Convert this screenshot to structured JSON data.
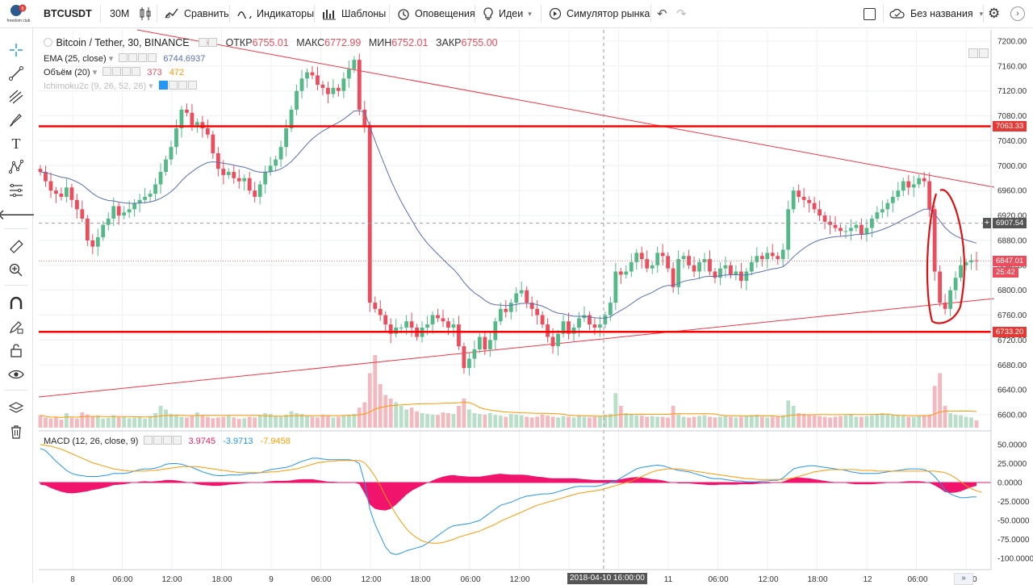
{
  "topbar": {
    "symbol": "BTCUSDT",
    "interval": "30M",
    "compare": "Сравнить",
    "indicators": "Индикаторы",
    "templates": "Шаблоны",
    "alerts": "Оповещения",
    "ideas": "Идеи",
    "simulator": "Симулятор рынка",
    "layout_name": "Без названия"
  },
  "logo": {
    "text": "freedom club",
    "badge": "6"
  },
  "legend": {
    "title": "Bitcoin / Tether, 30, BINANCE",
    "o_label": "ОТКР",
    "o": "6755.01",
    "h_label": "МАКС",
    "h": "6772.99",
    "l_label": "МИН",
    "l": "6752.01",
    "c_label": "ЗАКР",
    "c": "6755.00",
    "ema_label": "EMA (25, close)",
    "ema_value": "6744.6937",
    "vol_label": "Объём (20)",
    "vol_value1": "373",
    "vol_value2": "472",
    "ichimoku_label": "Ichimoku2c (9, 26, 52, 26)",
    "macd_label": "MACD (12, 26, close, 9)",
    "macd_v1": "3.9745",
    "macd_v2": "-3.9713",
    "macd_v3": "-7.9458"
  },
  "price_axis": [
    "7200.00",
    "7160.00",
    "7120.00",
    "7080.00",
    "7040.00",
    "7000.00",
    "6960.00",
    "6920.00",
    "6880.00",
    "6840.00",
    "6800.00",
    "6760.00",
    "6720.00",
    "6680.00",
    "6640.00",
    "6600.00"
  ],
  "price_tags": {
    "level_high": "7063.33",
    "crosshair": "6907.54",
    "last": "6847.01",
    "countdown": "25:42",
    "level_low": "6733.20"
  },
  "macd_axis": [
    "50.0000",
    "25.0000",
    "0.0000",
    "-25.0000",
    "-50.0000",
    "-75.0000",
    "-100.0000"
  ],
  "time_axis": [
    "8",
    "06:00",
    "12:00",
    "18:00",
    "9",
    "06:00",
    "12:00",
    "18:00",
    "06:00",
    "12:00",
    "11",
    "06:00",
    "12:00",
    "18:00",
    "12",
    "06:00",
    "12:00"
  ],
  "crosshair_time": "2018-04-10 16:00:00",
  "colors": {
    "up": "#53b987",
    "down": "#eb4d5c",
    "line": "#ff0000",
    "ema": "#5b6fb3"
  },
  "chart_data": {
    "type": "candlestick",
    "title": "Bitcoin / Tether, 30, BINANCE",
    "ylim": [
      6590,
      7215
    ],
    "macd_ylim": [
      -105,
      60
    ],
    "levels": [
      7063.33,
      6733.2
    ],
    "close": [
      6990,
      6975,
      6960,
      6955,
      6950,
      6965,
      6945,
      6930,
      6915,
      6880,
      6870,
      6885,
      6905,
      6915,
      6935,
      6920,
      6925,
      6930,
      6940,
      6945,
      6950,
      6955,
      6970,
      6990,
      7010,
      7030,
      7060,
      7090,
      7085,
      7065,
      7070,
      7060,
      7050,
      7020,
      6995,
      6985,
      6990,
      6980,
      6975,
      6980,
      6960,
      6950,
      6970,
      6990,
      7000,
      7010,
      7030,
      7060,
      7090,
      7120,
      7140,
      7150,
      7145,
      7130,
      7125,
      7115,
      7125,
      7120,
      7140,
      7155,
      7170,
      7090,
      7065,
      6780,
      6770,
      6760,
      6745,
      6730,
      6740,
      6740,
      6750,
      6740,
      6725,
      6740,
      6745,
      6760,
      6755,
      6750,
      6740,
      6745,
      6710,
      6675,
      6690,
      6705,
      6725,
      6705,
      6720,
      6750,
      6770,
      6765,
      6780,
      6795,
      6800,
      6780,
      6770,
      6760,
      6745,
      6725,
      6710,
      6730,
      6750,
      6730,
      6740,
      6755,
      6760,
      6745,
      6740,
      6745,
      6760,
      6780,
      6830,
      6825,
      6830,
      6845,
      6860,
      6850,
      6835,
      6840,
      6860,
      6855,
      6835,
      6805,
      6850,
      6855,
      6840,
      6830,
      6845,
      6850,
      6830,
      6820,
      6835,
      6840,
      6825,
      6830,
      6815,
      6830,
      6845,
      6855,
      6850,
      6860,
      6855,
      6850,
      6865,
      6930,
      6960,
      6950,
      6945,
      6940,
      6930,
      6920,
      6910,
      6905,
      6900,
      6895,
      6895,
      6900,
      6905,
      6890,
      6900,
      6915,
      6925,
      6930,
      6940,
      6950,
      6960,
      6975,
      6965,
      6970,
      6980,
      6975,
      6930,
      6830,
      6780,
      6770,
      6800,
      6820,
      6840,
      6845,
      6848,
      6847
    ],
    "volume": [
      34,
      28,
      25,
      30,
      22,
      40,
      27,
      25,
      42,
      36,
      30,
      33,
      25,
      27,
      34,
      29,
      31,
      26,
      28,
      30,
      25,
      32,
      40,
      60,
      50,
      38,
      36,
      30,
      28,
      32,
      42,
      35,
      30,
      26,
      28,
      30,
      33,
      28,
      24,
      26,
      30,
      28,
      35,
      40,
      38,
      32,
      30,
      36,
      45,
      40,
      38,
      34,
      30,
      28,
      35,
      32,
      28,
      30,
      33,
      36,
      38,
      55,
      70,
      150,
      200,
      120,
      90,
      80,
      70,
      60,
      50,
      55,
      45,
      40,
      38,
      36,
      35,
      42,
      40,
      38,
      60,
      80,
      50,
      40,
      38,
      36,
      40,
      35,
      33,
      30,
      38,
      36,
      34,
      30,
      28,
      30,
      36,
      33,
      30,
      28,
      32,
      30,
      28,
      34,
      30,
      28,
      30,
      32,
      36,
      38,
      95,
      60,
      40,
      36,
      34,
      33,
      30,
      32,
      30,
      30,
      28,
      60,
      36,
      30,
      28,
      30,
      32,
      34,
      30,
      28,
      30,
      32,
      30,
      28,
      30,
      32,
      34,
      36,
      30,
      28,
      30,
      32,
      34,
      75,
      60,
      40,
      38,
      36,
      34,
      32,
      30,
      28,
      30,
      32,
      34,
      36,
      30,
      30,
      32,
      34,
      36,
      40,
      38,
      36,
      34,
      32,
      30,
      30,
      32,
      34,
      36,
      115,
      150,
      60,
      40,
      36,
      34,
      30,
      28,
      20
    ],
    "macd": [
      45,
      42,
      35,
      28,
      22,
      16,
      12,
      10,
      9,
      8,
      8,
      8,
      9,
      10,
      12,
      12,
      12,
      13,
      15,
      17,
      18,
      18,
      19,
      21,
      24,
      25,
      25,
      24,
      22,
      20,
      17,
      14,
      12,
      10,
      9,
      9,
      10,
      10,
      10,
      11,
      12,
      12,
      13,
      15,
      17,
      18,
      19,
      20,
      22,
      25,
      28,
      30,
      32,
      32,
      31,
      30,
      30,
      30,
      30,
      30,
      29,
      25,
      0,
      -35,
      -55,
      -70,
      -85,
      -93,
      -95,
      -93,
      -90,
      -88,
      -86,
      -84,
      -80,
      -75,
      -70,
      -65,
      -60,
      -57,
      -56,
      -55,
      -54,
      -52,
      -50,
      -45,
      -40,
      -35,
      -30,
      -28,
      -26,
      -23,
      -20,
      -18,
      -17,
      -16,
      -15,
      -15,
      -14,
      -12,
      -10,
      -8,
      -6,
      -5,
      -5,
      -5,
      -5,
      -4,
      -2,
      0,
      2,
      6,
      10,
      14,
      18,
      20,
      21,
      22,
      23,
      22,
      20,
      18,
      16,
      15,
      14,
      12,
      10,
      8,
      6,
      5,
      5,
      4,
      3,
      2,
      2,
      1,
      1,
      1,
      2,
      2,
      3,
      3,
      6,
      12,
      18,
      20,
      21,
      22,
      22,
      21,
      20,
      19,
      18,
      17,
      16,
      14,
      13,
      12,
      12,
      12,
      12,
      13,
      14,
      15,
      16,
      17,
      18,
      18,
      18,
      17,
      14,
      8,
      0,
      -10,
      -15,
      -18,
      -20,
      -20,
      -19,
      -19
    ],
    "signal": [
      50,
      49,
      48,
      46,
      44,
      41,
      38,
      35,
      32,
      29,
      26,
      24,
      22,
      20,
      18,
      17,
      16,
      15,
      15,
      15,
      15,
      16,
      16,
      17,
      18,
      19,
      20,
      21,
      21,
      21,
      21,
      20,
      19,
      18,
      17,
      16,
      15,
      14,
      13,
      13,
      13,
      13,
      13,
      13,
      14,
      14,
      15,
      16,
      17,
      18,
      20,
      22,
      24,
      26,
      27,
      28,
      28,
      29,
      29,
      29,
      29,
      29,
      26,
      18,
      8,
      -4,
      -18,
      -30,
      -42,
      -52,
      -61,
      -68,
      -73,
      -77,
      -79,
      -80,
      -80,
      -79,
      -77,
      -75,
      -72,
      -70,
      -68,
      -66,
      -64,
      -61,
      -58,
      -55,
      -51,
      -48,
      -45,
      -42,
      -39,
      -36,
      -33,
      -30,
      -28,
      -26,
      -24,
      -22,
      -20,
      -18,
      -16,
      -14,
      -13,
      -12,
      -11,
      -10,
      -8,
      -6,
      -4,
      -2,
      0,
      2,
      5,
      8,
      11,
      14,
      16,
      17,
      18,
      18,
      18,
      17,
      16,
      15,
      14,
      13,
      12,
      11,
      10,
      9,
      8,
      7,
      6,
      5,
      5,
      4,
      4,
      4,
      4,
      4,
      4,
      5,
      6,
      8,
      10,
      12,
      14,
      15,
      16,
      17,
      17,
      17,
      17,
      17,
      17,
      16,
      16,
      16,
      15,
      15,
      15,
      15,
      15,
      15,
      15,
      15,
      15,
      15,
      15,
      15,
      14,
      13,
      10,
      6,
      1,
      -4,
      -8,
      -11,
      -13
    ]
  }
}
